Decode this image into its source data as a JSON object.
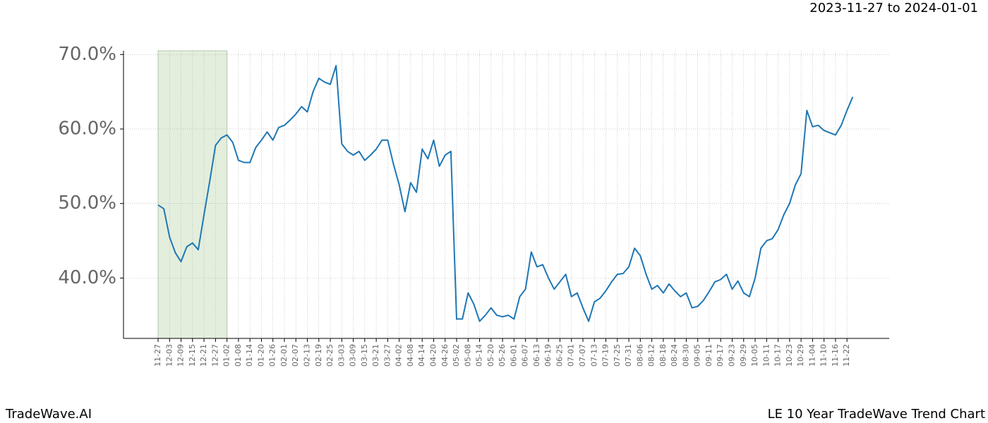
{
  "header": {
    "date_range": "2023-11-27 to 2024-01-01"
  },
  "footer": {
    "brand": "TradeWave.AI",
    "caption": "LE 10 Year TradeWave Trend Chart"
  },
  "chart_data": {
    "type": "line",
    "color": "#1f77b4",
    "grid": true,
    "shaded_range": [
      "11-27",
      "01-02"
    ],
    "shade_color": "#e3eedd",
    "categories": [
      "11-27",
      null,
      "12-03",
      null,
      "12-09",
      null,
      "12-15",
      null,
      "12-21",
      null,
      "12-27",
      null,
      "01-02",
      null,
      "01-08",
      null,
      "01-14",
      null,
      "01-20",
      null,
      "01-26",
      null,
      "02-01",
      null,
      "02-07",
      null,
      "02-13",
      null,
      "02-19",
      null,
      "02-25",
      null,
      "03-03",
      null,
      "03-09",
      null,
      "03-15",
      null,
      "03-21",
      null,
      "03-27",
      null,
      "04-02",
      null,
      "04-08",
      null,
      "04-14",
      null,
      "04-20",
      null,
      "04-26",
      null,
      "05-02",
      null,
      "05-08",
      null,
      "05-14",
      null,
      "05-20",
      null,
      "05-26",
      null,
      "06-01",
      null,
      "06-07",
      null,
      "06-13",
      null,
      "06-19",
      null,
      "06-25",
      null,
      "07-01",
      null,
      "07-07",
      null,
      "07-13",
      null,
      "07-19",
      null,
      "07-25",
      null,
      "07-31",
      null,
      "08-06",
      null,
      "08-12",
      null,
      "08-18",
      null,
      "08-24",
      null,
      "08-30",
      null,
      "09-05",
      null,
      "09-11",
      null,
      "09-17",
      null,
      "09-23",
      null,
      "09-29",
      null,
      "10-05",
      null,
      "10-11",
      null,
      "10-17",
      null,
      "10-23",
      null,
      "10-29",
      null,
      "11-04",
      null,
      "11-10",
      null,
      "11-16",
      null,
      "11-22",
      null
    ],
    "values": [
      49.8,
      49.3,
      45.5,
      43.4,
      42.2,
      44.2,
      44.7,
      43.8,
      48.5,
      53,
      57.8,
      58.8,
      59.2,
      58.2,
      55.8,
      55.5,
      55.5,
      57.5,
      58.5,
      59.6,
      58.5,
      60.2,
      60.5,
      61.2,
      62,
      63,
      62.3,
      65,
      66.8,
      66.3,
      66,
      68.5,
      58,
      57,
      56.5,
      57,
      55.8,
      56.5,
      57.3,
      58.5,
      58.5,
      55.3,
      52.5,
      48.9,
      52.8,
      51.5,
      57.3,
      56,
      58.5,
      55,
      56.5,
      57,
      34.5,
      34.5,
      38,
      36.5,
      34.2,
      35,
      36,
      35,
      34.8,
      35,
      34.5,
      37.5,
      38.5,
      43.5,
      41.5,
      41.8,
      40,
      38.5,
      39.5,
      40.5,
      37.5,
      38,
      36,
      34.2,
      36.8,
      37.3,
      38.3,
      39.5,
      40.5,
      40.6,
      41.5,
      44,
      43,
      40.5,
      38.5,
      39,
      38,
      39.2,
      38.3,
      37.5,
      38,
      36,
      36.2,
      37,
      38.2,
      39.5,
      39.8,
      40.5,
      38.5,
      39.6,
      38,
      37.5,
      40,
      44,
      45,
      45.3,
      46.5,
      48.5,
      50,
      52.5,
      54,
      62.5,
      60.3,
      60.5,
      59.8,
      59.5,
      59.2,
      60.5,
      62.5,
      64.3
    ],
    "ylim": [
      31.9,
      70.5
    ],
    "yticks": [
      {
        "value": 40,
        "label": "40.0%"
      },
      {
        "value": 50,
        "label": "50.0%"
      },
      {
        "value": 60,
        "label": "60.0%"
      },
      {
        "value": 70,
        "label": "70.0%"
      }
    ]
  }
}
